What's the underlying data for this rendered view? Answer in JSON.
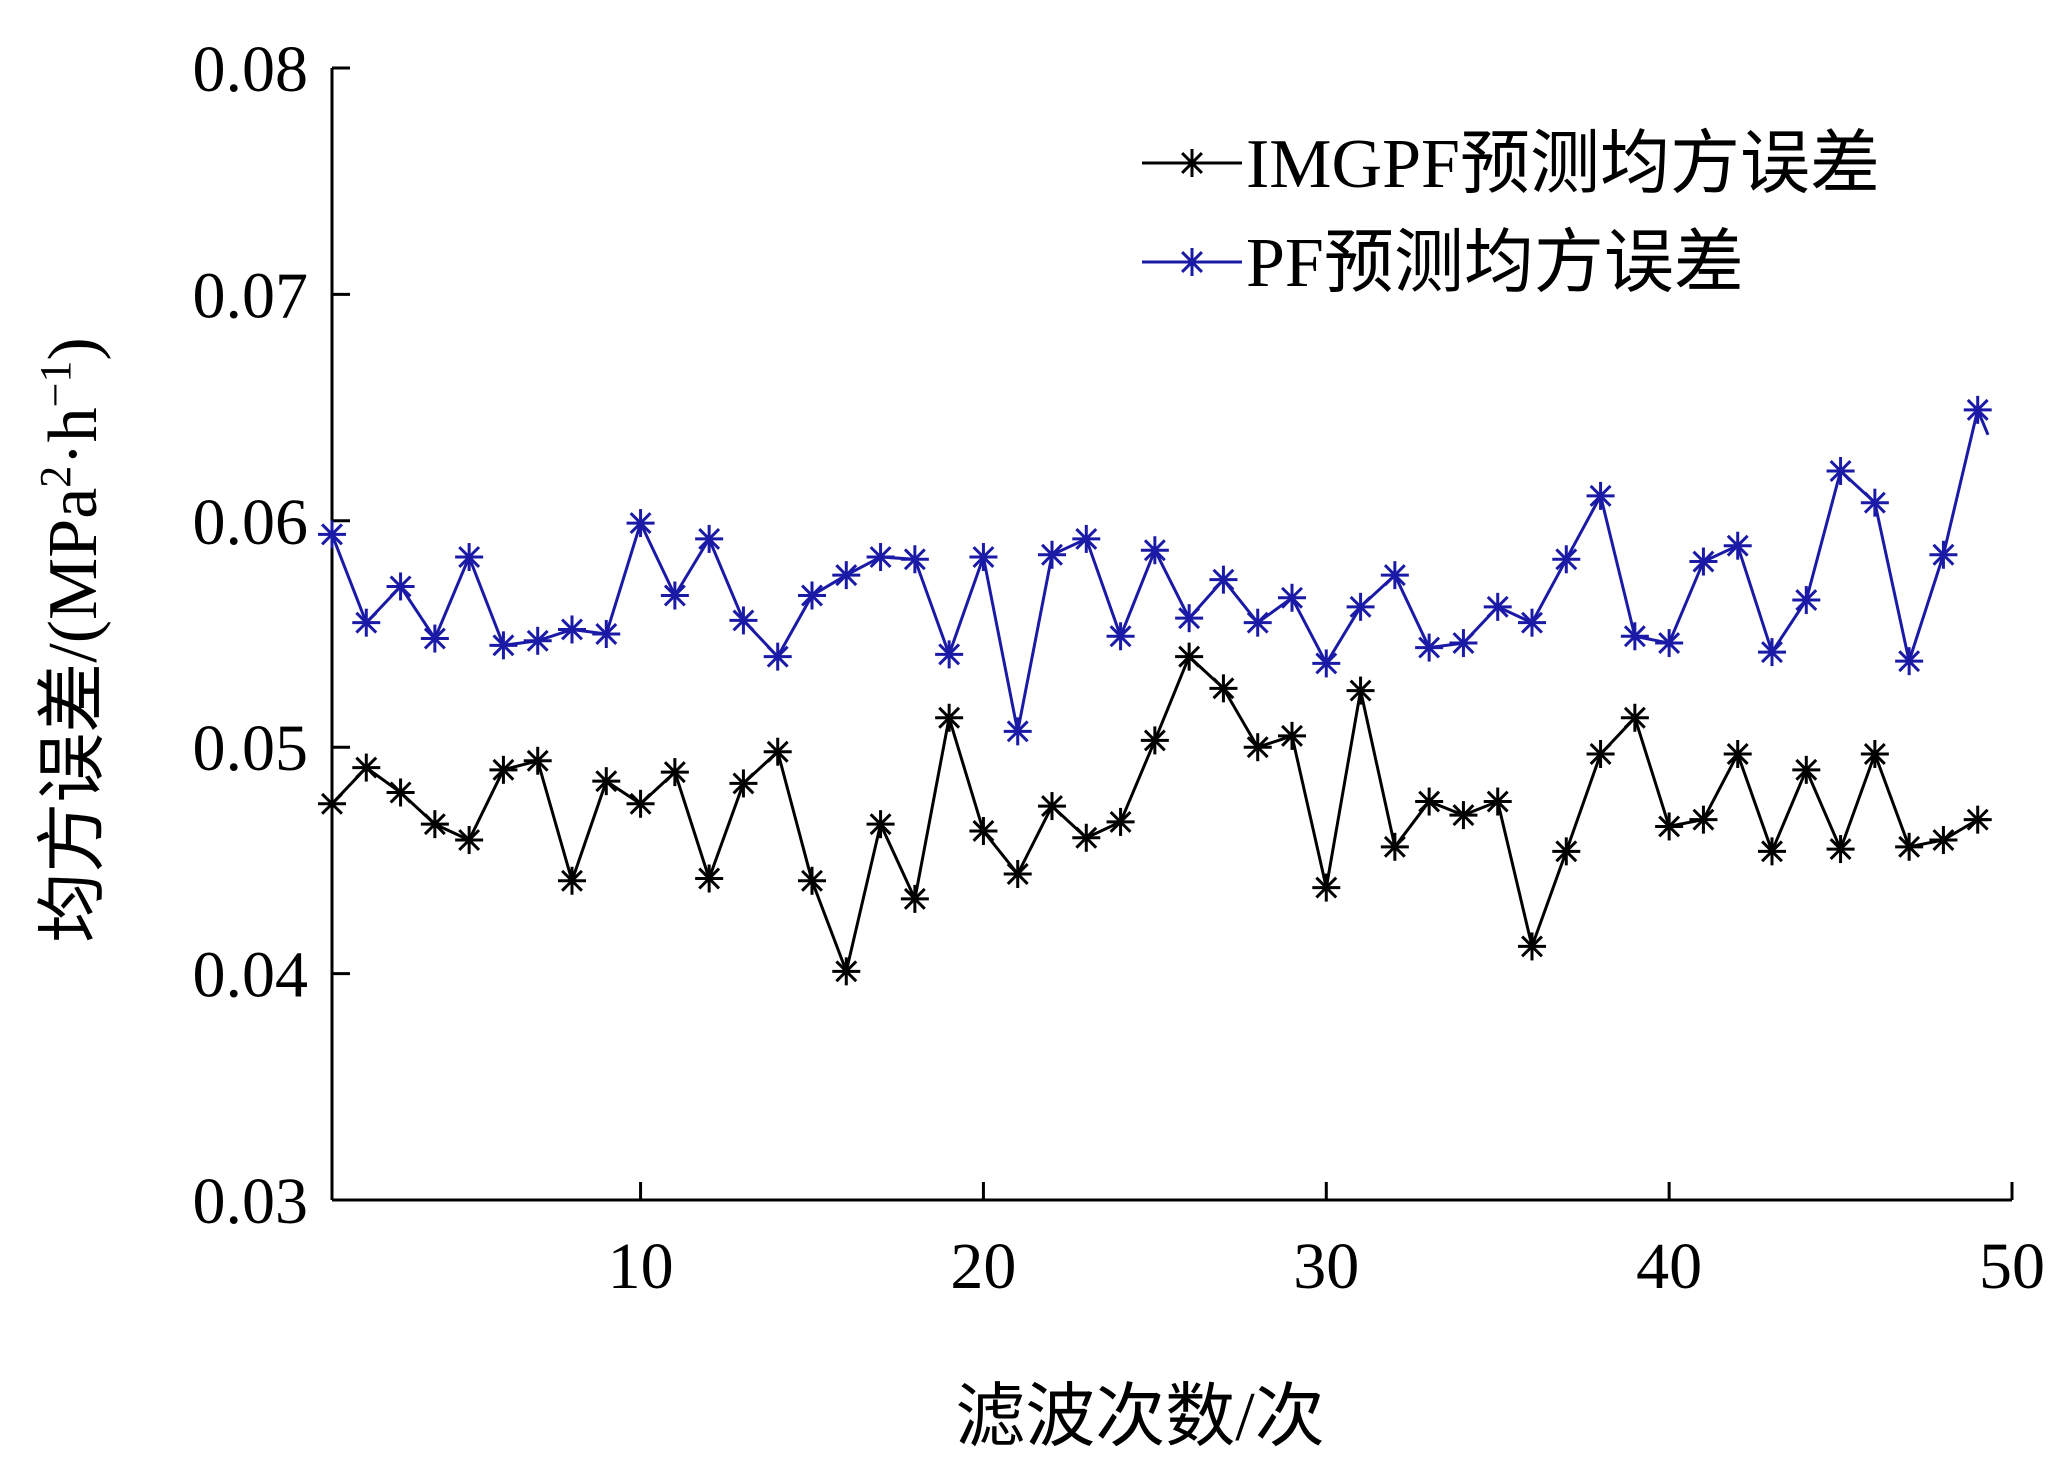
{
  "chart_data": {
    "type": "line",
    "xlabel": "滤波次数/次",
    "ylabel_main": "均方误差/(MPa",
    "ylabel_sup1": "2",
    "ylabel_mid": "·h",
    "ylabel_sup2": "−1",
    "ylabel_end": ")",
    "xlim": [
      1,
      50
    ],
    "ylim": [
      0.03,
      0.08
    ],
    "x_ticks": [
      10,
      20,
      30,
      40,
      50
    ],
    "x_tick_labels": [
      "10",
      "20",
      "30",
      "40",
      "50"
    ],
    "y_ticks": [
      0.03,
      0.04,
      0.05,
      0.06,
      0.07,
      0.08
    ],
    "y_tick_labels": [
      "0.03",
      "0.04",
      "0.05",
      "0.06",
      "0.07",
      "0.08"
    ],
    "legend_position": "top-right",
    "grid": false,
    "x": [
      1,
      2,
      3,
      4,
      5,
      6,
      7,
      8,
      9,
      10,
      11,
      12,
      13,
      14,
      15,
      16,
      17,
      18,
      19,
      20,
      21,
      22,
      23,
      24,
      25,
      26,
      27,
      28,
      29,
      30,
      31,
      32,
      33,
      34,
      35,
      36,
      37,
      38,
      39,
      40,
      41,
      42,
      43,
      44,
      45,
      46,
      47,
      48,
      49,
      49.3
    ],
    "series": [
      {
        "name": "IMGPF预测均方误差",
        "color": "#000000",
        "marker": "asterisk",
        "values": [
          0.0475,
          0.0491,
          0.048,
          0.0466,
          0.0459,
          0.049,
          0.0494,
          0.0441,
          0.0485,
          0.0475,
          0.0489,
          0.0442,
          0.0484,
          0.0498,
          0.0441,
          0.0401,
          0.0466,
          0.0433,
          0.0513,
          0.0463,
          0.0444,
          0.0474,
          0.046,
          0.0467,
          0.0503,
          0.054,
          0.0526,
          0.05,
          0.0505,
          0.0438,
          0.0525,
          0.0456,
          0.0476,
          0.047,
          0.0476,
          0.0412,
          0.0454,
          0.0497,
          0.0513,
          0.0465,
          0.0468,
          0.0497,
          0.0454,
          0.049,
          0.0455,
          0.0497,
          0.0456,
          0.0459,
          0.0468,
          0.0468
        ]
      },
      {
        "name": "PF预测均方误差",
        "color": "#1a1aa6",
        "marker": "asterisk",
        "values": [
          0.0594,
          0.0555,
          0.0571,
          0.0548,
          0.0584,
          0.0545,
          0.0547,
          0.0552,
          0.055,
          0.0599,
          0.0567,
          0.0592,
          0.0556,
          0.054,
          0.0567,
          0.0576,
          0.0584,
          0.0583,
          0.0541,
          0.0584,
          0.0507,
          0.0585,
          0.0592,
          0.0549,
          0.0587,
          0.0557,
          0.0574,
          0.0555,
          0.0566,
          0.0537,
          0.0562,
          0.0576,
          0.0544,
          0.0546,
          0.0562,
          0.0555,
          0.0583,
          0.0611,
          0.0549,
          0.0546,
          0.0582,
          0.0589,
          0.0542,
          0.0565,
          0.0622,
          0.0608,
          0.0538,
          0.0585,
          0.0649,
          0.0638
        ]
      }
    ]
  }
}
